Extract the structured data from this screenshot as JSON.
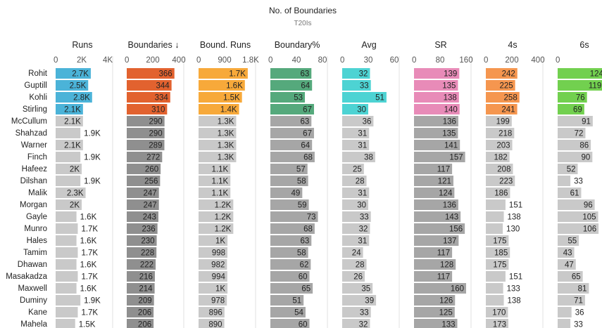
{
  "chart_data": {
    "type": "bar",
    "title": "No. of Boundaries",
    "subtitle": "T20Is",
    "categories": [
      "Rohit",
      "Guptill",
      "Kohli",
      "Stirling",
      "McCullum",
      "Shahzad",
      "Warner",
      "Finch",
      "Hafeez",
      "Dilshan",
      "Malik",
      "Morgan",
      "Gayle",
      "Munro",
      "Hales",
      "Tamim",
      "Dhawan",
      "Masakadza",
      "Maxwell",
      "Duminy",
      "Kane",
      "Mahela"
    ],
    "highlight_top": 4,
    "series": [
      {
        "name": "Runs",
        "xlim": [
          0,
          4000
        ],
        "ticks": [
          "0",
          "2K",
          "4K"
        ],
        "color": "#4bb3d8",
        "grey": "#c9c9c9",
        "values": [
          2700,
          2500,
          2800,
          2100,
          2100,
          1900,
          2100,
          1900,
          2000,
          1900,
          2300,
          2000,
          1600,
          1700,
          1600,
          1700,
          1600,
          1700,
          1600,
          1900,
          1700,
          1500
        ],
        "labels": [
          "2.7K",
          "2.5K",
          "2.8K",
          "2.1K",
          "2.1K",
          "1.9K",
          "2.1K",
          "1.9K",
          "2K",
          "1.9K",
          "2.3K",
          "2K",
          "1.6K",
          "1.7K",
          "1.6K",
          "1.7K",
          "1.6K",
          "1.7K",
          "1.6K",
          "1.9K",
          "1.7K",
          "1.5K"
        ]
      },
      {
        "name": "Boundaries ↓",
        "xlim": [
          0,
          400
        ],
        "ticks": [
          "0",
          "200",
          "400"
        ],
        "color": "#e2622f",
        "grey": "#8f8f8f",
        "values": [
          366,
          344,
          334,
          310,
          290,
          290,
          289,
          272,
          260,
          256,
          247,
          247,
          243,
          236,
          230,
          228,
          222,
          216,
          214,
          209,
          206,
          206
        ],
        "labels": [
          "366",
          "344",
          "334",
          "310",
          "290",
          "290",
          "289",
          "272",
          "260",
          "256",
          "247",
          "247",
          "243",
          "236",
          "230",
          "228",
          "222",
          "216",
          "214",
          "209",
          "206",
          "206"
        ]
      },
      {
        "name": "Bound. Runs",
        "xlim": [
          0,
          1800
        ],
        "ticks": [
          "0",
          "900",
          "1.8K"
        ],
        "color": "#f7a93a",
        "grey": "#c9c9c9",
        "values": [
          1700,
          1600,
          1500,
          1400,
          1300,
          1300,
          1300,
          1300,
          1100,
          1100,
          1100,
          1200,
          1200,
          1200,
          1000,
          998,
          982,
          994,
          1000,
          978,
          896,
          890
        ],
        "labels": [
          "1.7K",
          "1.6K",
          "1.5K",
          "1.4K",
          "1.3K",
          "1.3K",
          "1.3K",
          "1.3K",
          "1.1K",
          "1.1K",
          "1.1K",
          "1.2K",
          "1.2K",
          "1.2K",
          "1K",
          "998",
          "982",
          "994",
          "1K",
          "978",
          "896",
          "890"
        ]
      },
      {
        "name": "Boundary%",
        "xlim": [
          0,
          80
        ],
        "ticks": [
          "0",
          "40",
          "80"
        ],
        "color": "#55a97c",
        "grey": "#a6a6a6",
        "values": [
          63,
          64,
          53,
          67,
          63,
          67,
          64,
          68,
          57,
          58,
          49,
          59,
          73,
          68,
          63,
          58,
          62,
          60,
          65,
          51,
          54,
          60
        ],
        "labels": [
          "63",
          "64",
          "53",
          "67",
          "63",
          "67",
          "64",
          "68",
          "57",
          "58",
          "49",
          "59",
          "73",
          "68",
          "63",
          "58",
          "62",
          "60",
          "65",
          "51",
          "54",
          "60"
        ]
      },
      {
        "name": "Avg",
        "xlim": [
          0,
          60
        ],
        "ticks": [
          "0",
          "30",
          "60"
        ],
        "color": "#4dd3d3",
        "grey": "#c9c9c9",
        "values": [
          32,
          33,
          51,
          30,
          36,
          31,
          31,
          38,
          25,
          28,
          31,
          30,
          33,
          32,
          31,
          24,
          28,
          26,
          35,
          39,
          33,
          32
        ],
        "labels": [
          "32",
          "33",
          "51",
          "30",
          "36",
          "31",
          "31",
          "38",
          "25",
          "28",
          "31",
          "30",
          "33",
          "32",
          "31",
          "24",
          "28",
          "26",
          "35",
          "39",
          "33",
          "32"
        ]
      },
      {
        "name": "SR",
        "xlim": [
          0,
          160
        ],
        "ticks": [
          "0",
          "80",
          "160"
        ],
        "color": "#e88bb8",
        "grey": "#a6a6a6",
        "values": [
          139,
          135,
          138,
          140,
          136,
          135,
          141,
          157,
          117,
          121,
          124,
          136,
          143,
          156,
          137,
          117,
          128,
          117,
          160,
          126,
          125,
          133
        ],
        "labels": [
          "139",
          "135",
          "138",
          "140",
          "136",
          "135",
          "141",
          "157",
          "117",
          "121",
          "124",
          "136",
          "143",
          "156",
          "137",
          "117",
          "128",
          "117",
          "160",
          "126",
          "125",
          "133"
        ]
      },
      {
        "name": "4s",
        "xlim": [
          0,
          400
        ],
        "ticks": [
          "0",
          "200",
          "400"
        ],
        "color": "#f5964f",
        "grey": "#c9c9c9",
        "values": [
          242,
          225,
          258,
          241,
          199,
          218,
          203,
          182,
          208,
          223,
          186,
          151,
          138,
          130,
          175,
          185,
          175,
          151,
          133,
          138,
          170,
          173
        ],
        "labels": [
          "242",
          "225",
          "258",
          "241",
          "199",
          "218",
          "203",
          "182",
          "208",
          "223",
          "186",
          "151",
          "138",
          "130",
          "175",
          "185",
          "175",
          "151",
          "133",
          "138",
          "170",
          "173"
        ]
      },
      {
        "name": "6s",
        "xlim": [
          0,
          135
        ],
        "ticks": [
          "0"
        ],
        "color": "#72d04f",
        "grey": "#c9c9c9",
        "values": [
          124,
          119,
          76,
          69,
          91,
          72,
          86,
          90,
          52,
          33,
          61,
          96,
          105,
          106,
          55,
          43,
          47,
          65,
          81,
          71,
          36,
          33
        ],
        "labels": [
          "124",
          "119",
          "76",
          "69",
          "91",
          "72",
          "86",
          "90",
          "52",
          "33",
          "61",
          "96",
          "105",
          "106",
          "55",
          "43",
          "47",
          "65",
          "81",
          "71",
          "36",
          "33"
        ]
      }
    ]
  }
}
